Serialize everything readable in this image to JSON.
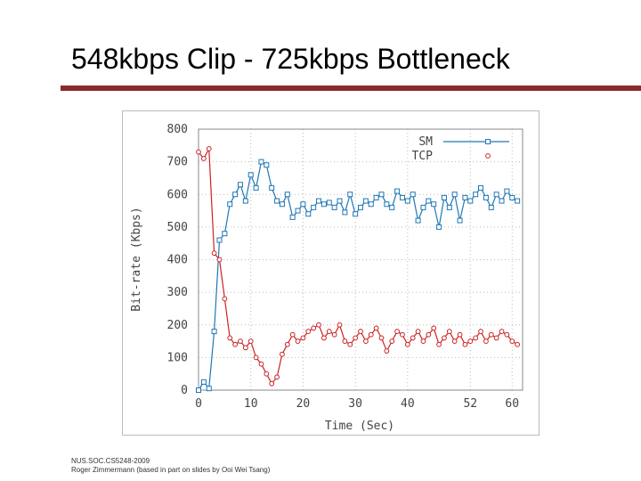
{
  "slide": {
    "title": "548kbps Clip - 725kbps Bottleneck",
    "footer_line1": "NUS.SOC.CS5248-2009",
    "footer_line2": "Roger Zimmermann (based in part on slides by Ooi Wei Tsang)"
  },
  "colors": {
    "title_rule": "#8b2a2a",
    "sm": "#1f77b4",
    "tcp": "#cc2222"
  },
  "chart_data": {
    "type": "line",
    "xlabel": "Time (Sec)",
    "ylabel": "Bit-rate (Kbps)",
    "xlim": [
      0,
      62
    ],
    "ylim": [
      0,
      800
    ],
    "x_ticks": [
      0,
      10,
      20,
      30,
      40,
      52,
      60
    ],
    "x_tick_labels": [
      "0",
      "10",
      "20",
      "30",
      "40",
      "52",
      "60"
    ],
    "y_ticks": [
      0,
      100,
      200,
      300,
      400,
      500,
      600,
      700,
      800
    ],
    "y_tick_labels": [
      "0",
      "100",
      "200",
      "300",
      "400",
      "500",
      "600",
      "700",
      "800"
    ],
    "grid": true,
    "legend_position": "top-right",
    "series": [
      {
        "name": "SM",
        "marker": "square",
        "x": [
          0,
          1,
          2,
          3,
          4,
          5,
          6,
          7,
          8,
          9,
          10,
          11,
          12,
          13,
          14,
          15,
          16,
          17,
          18,
          19,
          20,
          21,
          22,
          23,
          24,
          25,
          26,
          27,
          28,
          29,
          30,
          31,
          32,
          33,
          34,
          35,
          36,
          37,
          38,
          39,
          40,
          41,
          42,
          43,
          44,
          45,
          46,
          47,
          48,
          49,
          50,
          51,
          52,
          53,
          54,
          55,
          56,
          57,
          58,
          59,
          60,
          61
        ],
        "y": [
          0,
          25,
          5,
          180,
          460,
          480,
          570,
          600,
          630,
          580,
          660,
          620,
          700,
          690,
          620,
          580,
          570,
          600,
          530,
          550,
          570,
          540,
          560,
          580,
          570,
          575,
          560,
          580,
          545,
          600,
          540,
          560,
          580,
          570,
          590,
          600,
          570,
          560,
          610,
          590,
          580,
          600,
          520,
          560,
          580,
          570,
          500,
          590,
          560,
          600,
          520,
          590,
          580,
          600,
          620,
          590,
          560,
          600,
          580,
          610,
          590,
          580
        ]
      },
      {
        "name": "TCP",
        "marker": "circle",
        "x": [
          0,
          1,
          2,
          3,
          4,
          5,
          6,
          7,
          8,
          9,
          10,
          11,
          12,
          13,
          14,
          15,
          16,
          17,
          18,
          19,
          20,
          21,
          22,
          23,
          24,
          25,
          26,
          27,
          28,
          29,
          30,
          31,
          32,
          33,
          34,
          35,
          36,
          37,
          38,
          39,
          40,
          41,
          42,
          43,
          44,
          45,
          46,
          47,
          48,
          49,
          50,
          51,
          52,
          53,
          54,
          55,
          56,
          57,
          58,
          59,
          60,
          61
        ],
        "y": [
          730,
          710,
          740,
          420,
          400,
          280,
          160,
          140,
          150,
          130,
          150,
          100,
          80,
          50,
          20,
          40,
          110,
          140,
          170,
          150,
          160,
          180,
          190,
          200,
          160,
          180,
          170,
          200,
          150,
          140,
          160,
          180,
          150,
          170,
          190,
          160,
          120,
          150,
          180,
          170,
          140,
          160,
          180,
          150,
          170,
          190,
          140,
          160,
          180,
          150,
          170,
          140,
          150,
          160,
          180,
          150,
          170,
          160,
          180,
          170,
          150,
          140
        ]
      }
    ]
  }
}
